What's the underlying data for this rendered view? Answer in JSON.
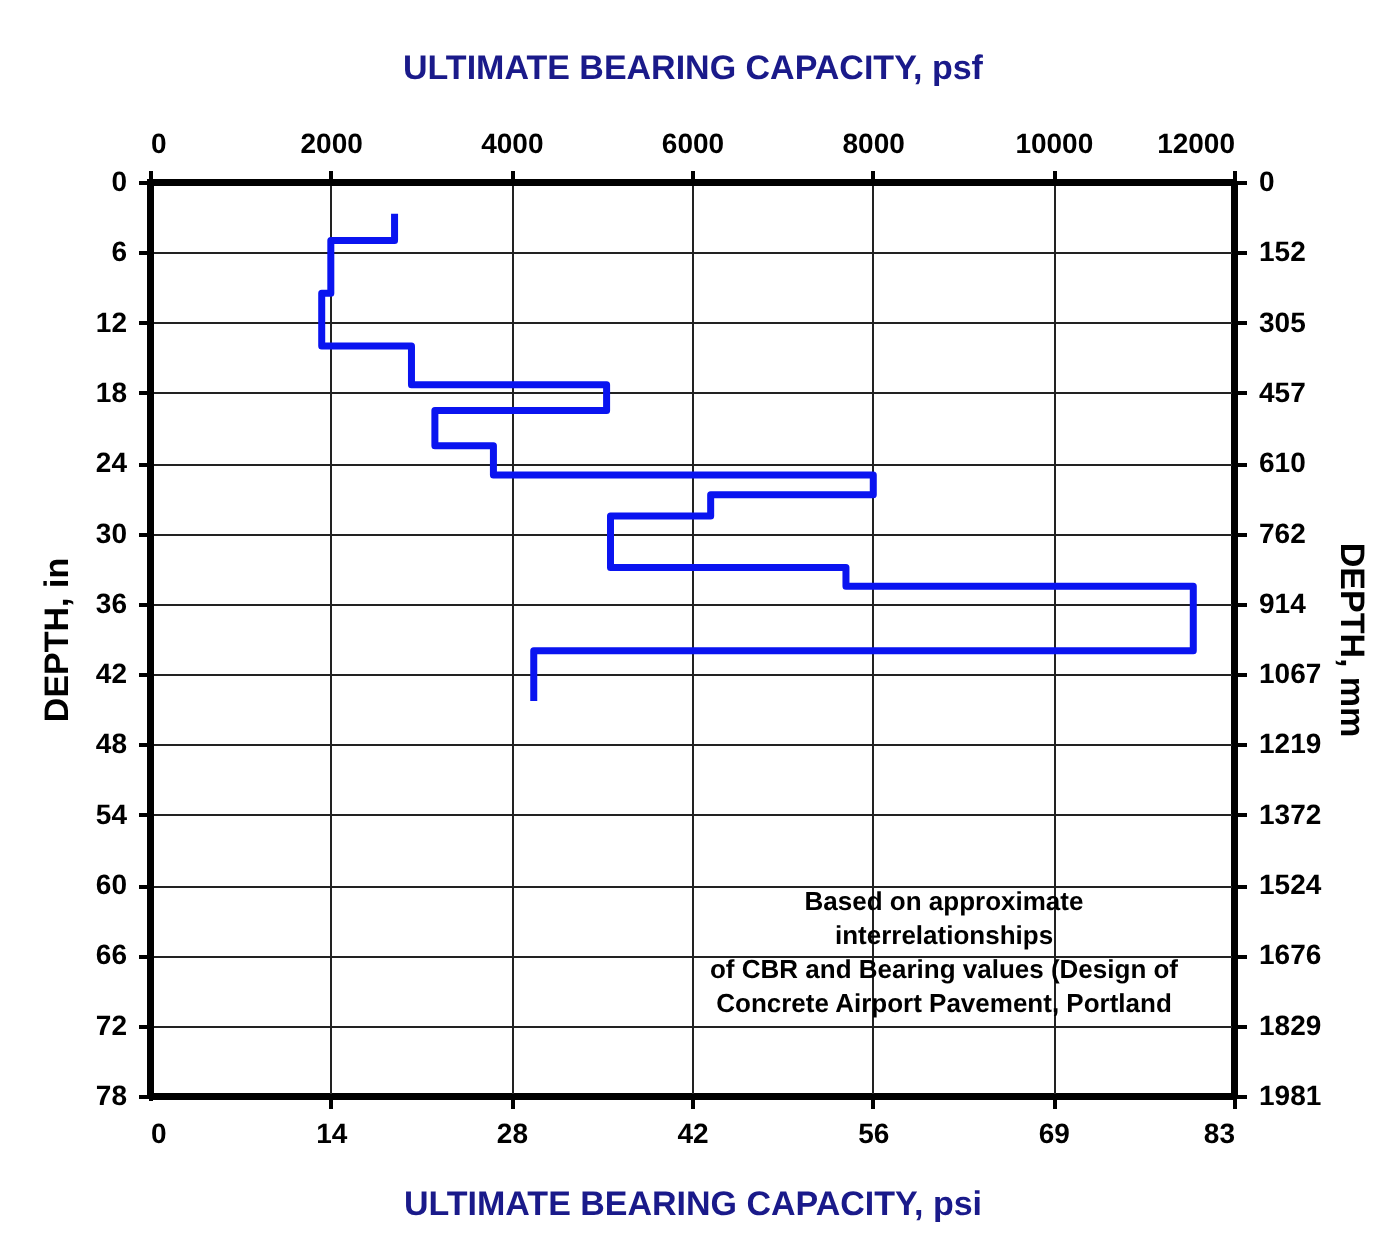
{
  "chart_data": {
    "type": "line",
    "xlabel": "ULTIMATE BEARING CAPACITY, psi",
    "x2label": "ULTIMATE BEARING CAPACITY, psf",
    "ylabel": "DEPTH, in",
    "y2label": "DEPTH, mm",
    "x": [
      18.8,
      18.8,
      13.9,
      13.9,
      13.2,
      13.2,
      20.1,
      20.1,
      35.1,
      35.1,
      21.9,
      21.9,
      26.4,
      26.4,
      55.6,
      55.6,
      43.1,
      43.1,
      35.4,
      35.4,
      53.5,
      53.5,
      80.2,
      80.2,
      29.5,
      29.5
    ],
    "values": [
      3,
      5,
      5,
      9.5,
      9.5,
      14,
      14,
      17.3,
      17.3,
      19.5,
      19.5,
      22.5,
      22.5,
      25,
      25,
      26.7,
      26.7,
      28.5,
      28.5,
      32.9,
      32.9,
      34.5,
      34.5,
      40,
      40,
      44
    ],
    "color": "#0a14f0",
    "xlim": [
      0,
      83.33
    ],
    "xticks": [
      0,
      {
        "value": 13.89,
        "label": "14"
      },
      {
        "value": 27.78,
        "label": "28"
      },
      {
        "value": 41.67,
        "label": "42"
      },
      {
        "value": 55.56,
        "label": "56"
      },
      {
        "value": 69.44,
        "label": "69"
      },
      {
        "value": 83.33,
        "label": "83"
      }
    ],
    "x2lim": [
      0,
      12000
    ],
    "x2ticks": [
      0,
      2000,
      4000,
      6000,
      8000,
      10000,
      12000
    ],
    "ylim": [
      78,
      0
    ],
    "yticks": [
      0,
      6,
      12,
      18,
      24,
      30,
      36,
      42,
      48,
      54,
      60,
      66,
      72,
      78
    ],
    "y2lim": [
      1981.2,
      0
    ],
    "y2ticks": [
      0,
      152,
      305,
      457,
      610,
      762,
      914,
      1067,
      1219,
      1372,
      1524,
      1676,
      1829,
      1981
    ],
    "grid": true,
    "marker": "none",
    "annotations": [
      "Based on approximate\ninterrelationships\nof CBR and Bearing values (Design of\nConcrete Airport Pavement, Portland"
    ]
  }
}
